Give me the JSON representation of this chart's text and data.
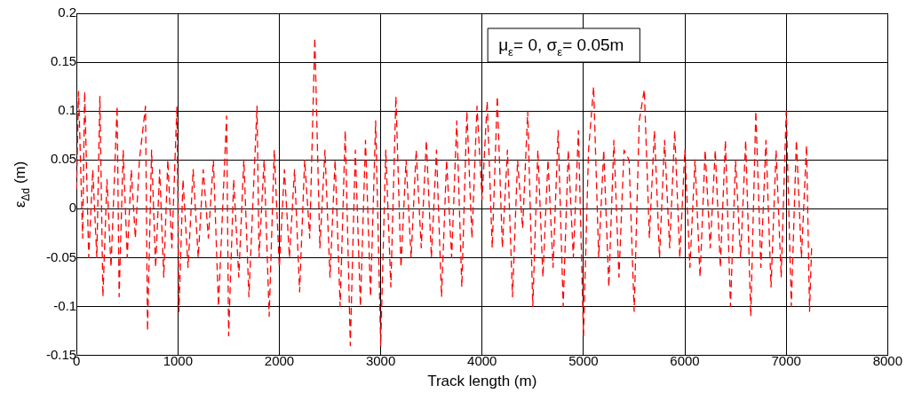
{
  "chart_data": {
    "type": "line",
    "xlabel": "Track length (m)",
    "ylabel": "ε$_{Δd}$ (m)",
    "annotations": [
      "μ$_{ε}$= 0, σ$_{ε}$= 0.05m"
    ],
    "xlim": [
      0,
      8000
    ],
    "xticks": [
      0,
      1000,
      2000,
      3000,
      4000,
      5000,
      6000,
      7000,
      8000
    ],
    "ylim": [
      -0.15,
      0.2
    ],
    "yticks": [
      -0.15,
      -0.1,
      -0.05,
      0,
      0.05,
      0.1,
      0.15,
      0.2
    ],
    "grid": true,
    "legend": false,
    "marker": "none",
    "line_style": "dashed",
    "series": [
      {
        "color": "#ff0000",
        "x": [
          0,
          20,
          60,
          80,
          120,
          160,
          200,
          230,
          260,
          300,
          340,
          400,
          420,
          460,
          500,
          540,
          580,
          620,
          680,
          700,
          740,
          780,
          820,
          860,
          900,
          940,
          990,
          1010,
          1050,
          1100,
          1150,
          1200,
          1250,
          1300,
          1350,
          1400,
          1480,
          1500,
          1550,
          1600,
          1650,
          1700,
          1780,
          1800,
          1850,
          1900,
          1950,
          2000,
          2050,
          2100,
          2150,
          2200,
          2250,
          2300,
          2350,
          2400,
          2450,
          2500,
          2550,
          2600,
          2650,
          2700,
          2750,
          2800,
          2850,
          2900,
          2950,
          3000,
          3050,
          3100,
          3150,
          3200,
          3250,
          3300,
          3350,
          3400,
          3450,
          3500,
          3550,
          3600,
          3650,
          3700,
          3750,
          3800,
          3850,
          3900,
          3950,
          4000,
          4050,
          4100,
          4150,
          4200,
          4250,
          4300,
          4350,
          4400,
          4450,
          4500,
          4550,
          4600,
          4650,
          4700,
          4750,
          4800,
          4850,
          4900,
          4950,
          5000,
          5050,
          5100,
          5150,
          5200,
          5250,
          5300,
          5350,
          5400,
          5450,
          5500,
          5550,
          5600,
          5650,
          5700,
          5750,
          5800,
          5850,
          5900,
          5950,
          6000,
          6050,
          6100,
          6150,
          6200,
          6250,
          6300,
          6350,
          6400,
          6450,
          6500,
          6550,
          6600,
          6650,
          6700,
          6750,
          6800,
          6850,
          6900,
          6950,
          7000,
          7050,
          7100,
          7150,
          7200,
          7230,
          7250
        ],
        "values": [
          0.02,
          0.12,
          -0.03,
          0.12,
          -0.05,
          0.04,
          -0.05,
          0.115,
          -0.09,
          0.03,
          -0.06,
          0.105,
          -0.09,
          0.06,
          -0.05,
          0.04,
          -0.03,
          0.05,
          0.105,
          -0.125,
          0.06,
          -0.06,
          0.04,
          -0.07,
          0.05,
          -0.04,
          0.105,
          -0.105,
          0.03,
          -0.06,
          0.04,
          -0.05,
          0.04,
          -0.03,
          0.05,
          -0.1,
          0.095,
          -0.13,
          0.03,
          -0.07,
          0.05,
          -0.09,
          0.105,
          -0.05,
          0.05,
          -0.11,
          0.06,
          -0.06,
          0.04,
          -0.05,
          0.04,
          -0.085,
          0.05,
          -0.03,
          0.175,
          -0.04,
          0.06,
          -0.07,
          0.05,
          -0.1,
          0.08,
          -0.14,
          0.06,
          -0.1,
          0.07,
          -0.09,
          0.09,
          -0.14,
          0.06,
          -0.08,
          0.115,
          -0.06,
          0.05,
          -0.05,
          0.06,
          -0.04,
          0.07,
          -0.05,
          0.06,
          -0.09,
          0.05,
          -0.05,
          0.09,
          -0.08,
          0.1,
          -0.03,
          0.105,
          0.01,
          0.11,
          -0.04,
          0.115,
          -0.04,
          0.06,
          -0.09,
          0.05,
          -0.02,
          0.1,
          -0.1,
          0.06,
          -0.07,
          0.05,
          -0.06,
          0.08,
          -0.1,
          0.06,
          -0.05,
          0.08,
          -0.13,
          0.06,
          0.125,
          -0.05,
          0.06,
          -0.08,
          0.07,
          -0.07,
          0.06,
          0.05,
          -0.105,
          0.09,
          0.122,
          -0.03,
          0.08,
          -0.05,
          0.07,
          -0.04,
          0.08,
          -0.05,
          0.06,
          -0.06,
          0.05,
          -0.07,
          0.06,
          -0.04,
          0.06,
          -0.06,
          0.07,
          -0.1,
          0.05,
          -0.05,
          0.07,
          -0.11,
          0.1,
          -0.06,
          0.07,
          -0.08,
          0.06,
          -0.07,
          0.1,
          -0.1,
          0.07,
          -0.05,
          0.065,
          -0.105,
          -0.04
        ]
      }
    ]
  }
}
